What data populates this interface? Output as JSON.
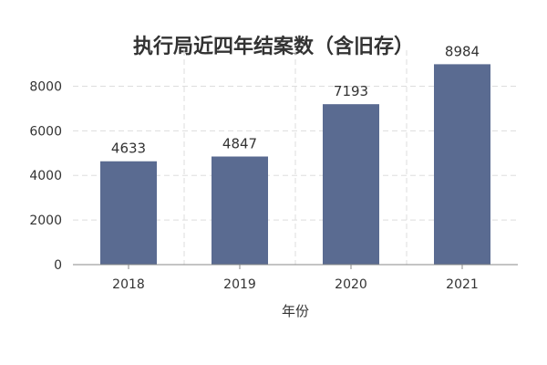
{
  "chart_data": {
    "type": "bar",
    "title": "执行局近四年结案数（含旧存）",
    "xlabel": "年份",
    "ylabel": "",
    "categories": [
      "2018",
      "2019",
      "2020",
      "2021"
    ],
    "values": [
      4633,
      4847,
      7193,
      8984
    ],
    "ylim": [
      0,
      9000
    ],
    "yticks": [
      0,
      2000,
      4000,
      6000,
      8000
    ],
    "data_labels": [
      "4633",
      "4847",
      "7193",
      "8984"
    ],
    "grid": true,
    "legend": "none",
    "colors": {
      "bar": "#5a6b91",
      "grid": "#dddddd",
      "axis": "#888888",
      "text": "#333333"
    }
  }
}
